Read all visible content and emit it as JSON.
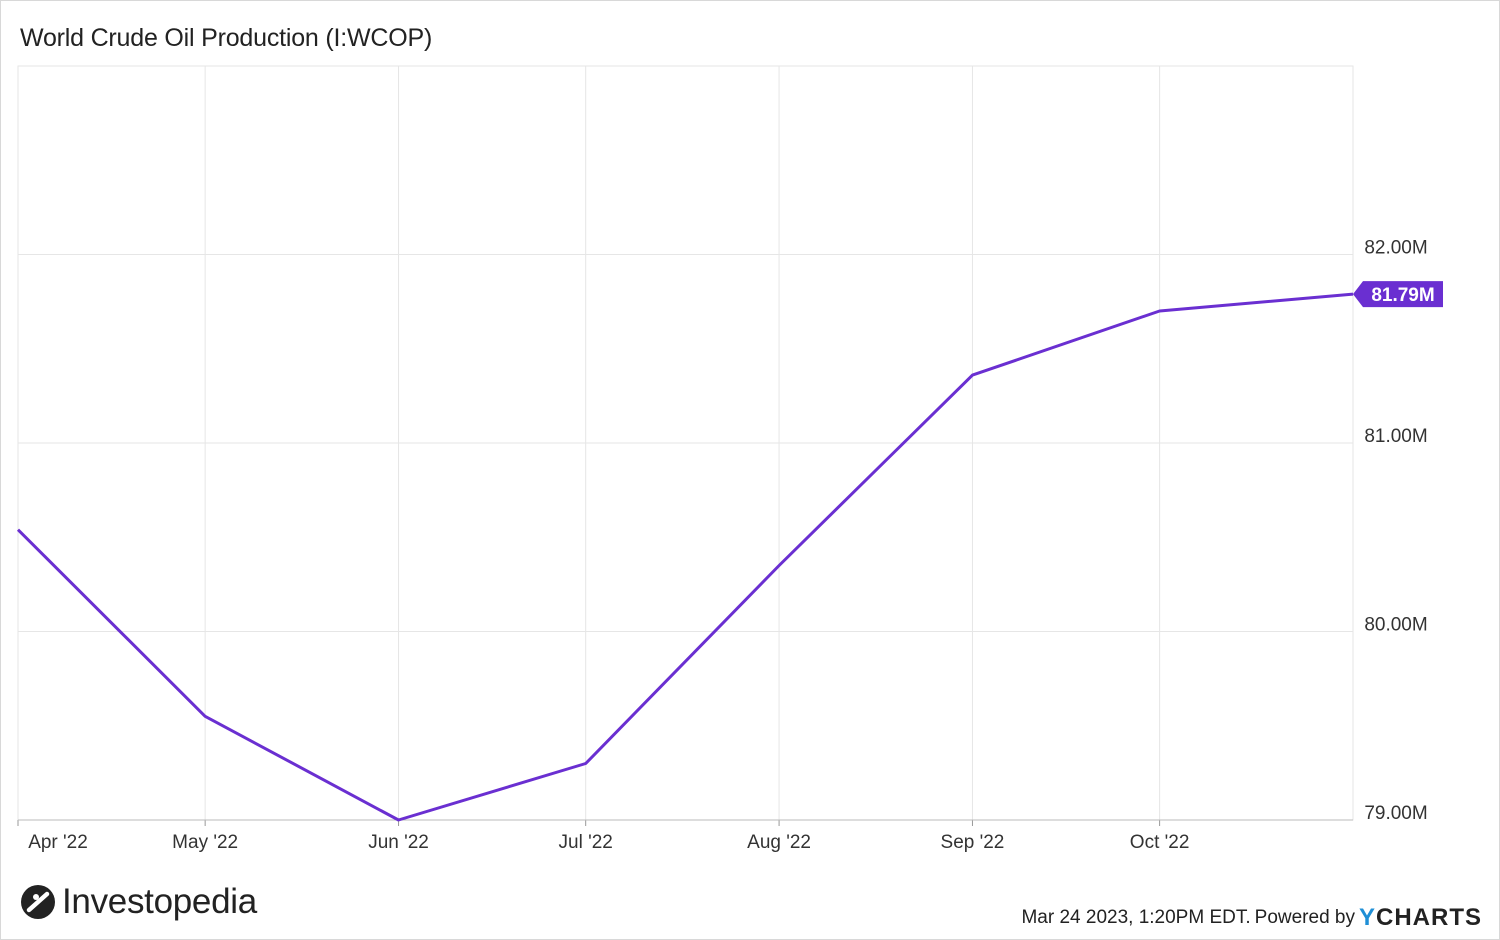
{
  "title": "World Crude Oil Production (I:WCOP)",
  "chart_data": {
    "type": "line",
    "x_ticks": [
      "Apr '22",
      "May '22",
      "Jun '22",
      "Jul '22",
      "Aug '22",
      "Sep '22",
      "Oct '22"
    ],
    "y_ticks": [
      "79.00M",
      "80.00M",
      "81.00M",
      "82.00M"
    ],
    "series": [
      {
        "color": "#6a2fd1",
        "x": [
          "2022-04-01",
          "2022-05-01",
          "2022-06-01",
          "2022-07-01",
          "2022-08-01",
          "2022-09-01",
          "2022-10-01",
          "2022-11-01"
        ],
        "values": [
          80.54,
          79.55,
          79.0,
          79.3,
          80.35,
          81.36,
          81.7,
          81.79
        ]
      }
    ],
    "last_value_label": "81.79M",
    "ylim": [
      79.0,
      83.0
    ],
    "xlim": [
      "2022-04-01",
      "2022-11-01"
    ],
    "grid": true,
    "yaxis_position": "right"
  },
  "footer": {
    "brand": "Investopedia",
    "timestamp": "Mar 24 2023, 1:20PM EDT.",
    "powered_by": "Powered by",
    "ycharts_y": "Y",
    "ycharts_rest": "CHARTS"
  },
  "colors": {
    "line": "#6a2fd1",
    "grid": "#e6e6e6",
    "axis_text": "#333333"
  }
}
